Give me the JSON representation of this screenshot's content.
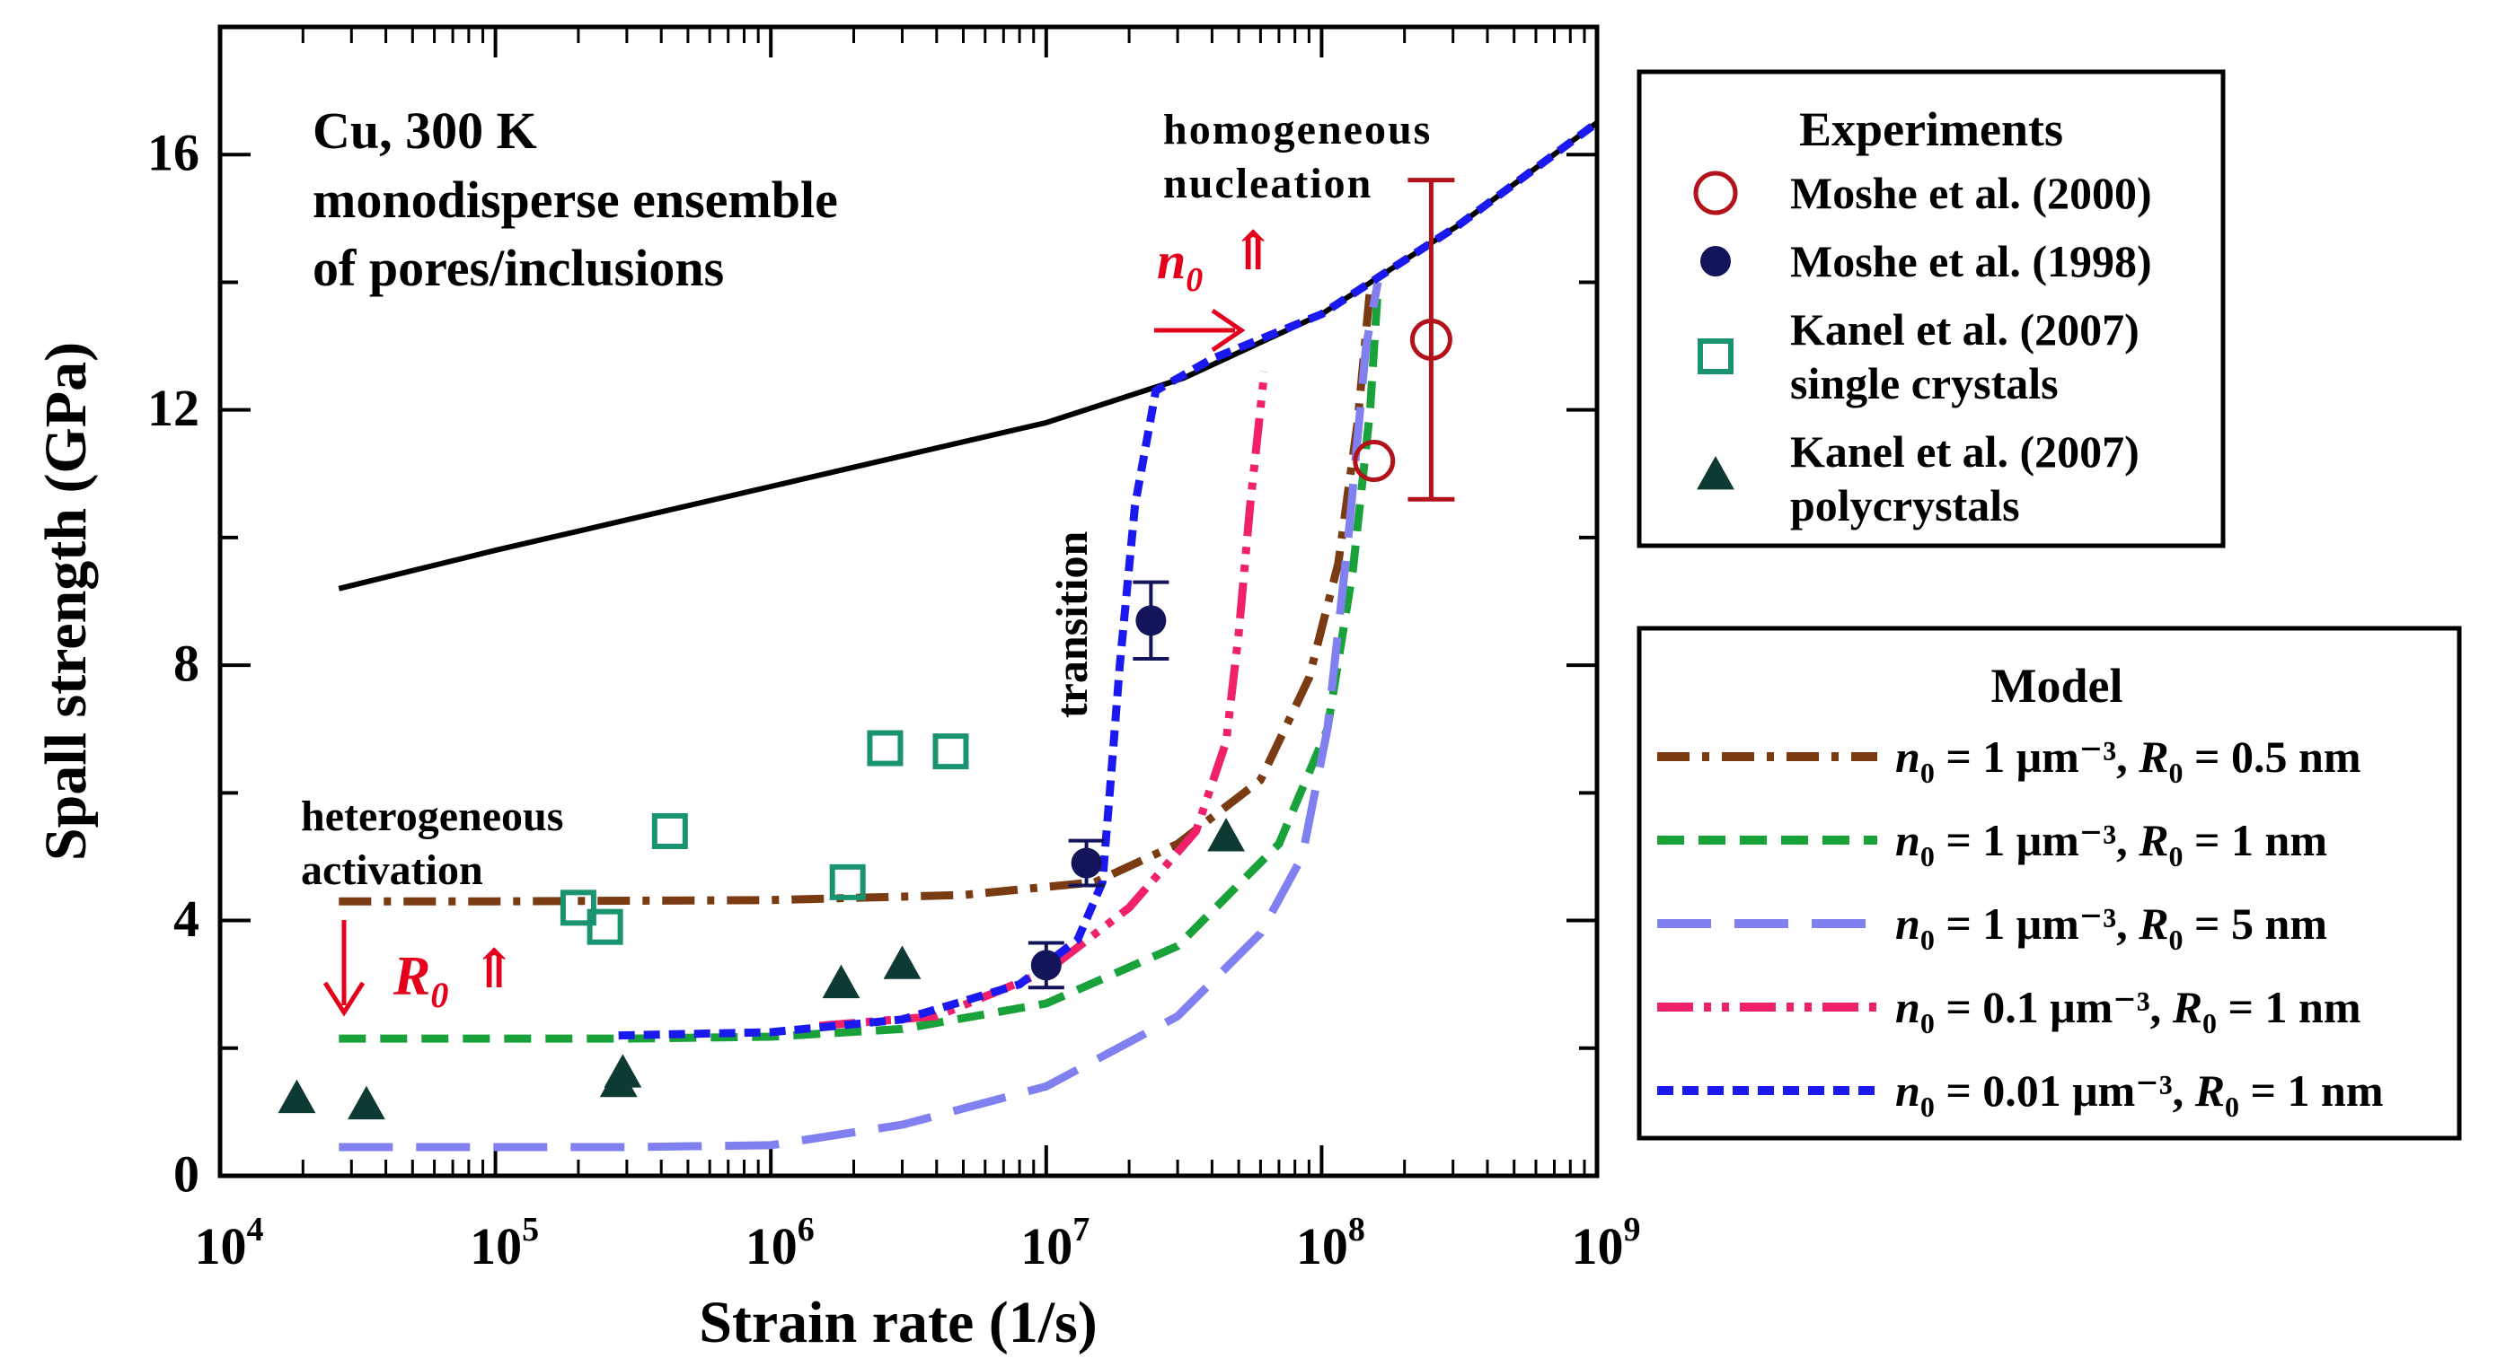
{
  "chart_data": {
    "type": "scatter",
    "xscale": "log",
    "xlim": [
      10000,
      1000000000
    ],
    "ylim": [
      0,
      18
    ],
    "xlabel": "Strain rate (1/s)",
    "ylabel": "Spall strength (GPa)",
    "x_ticks": [
      {
        "value": 10000,
        "base": "10",
        "exp": "4"
      },
      {
        "value": 100000,
        "base": "10",
        "exp": "5"
      },
      {
        "value": 1000000,
        "base": "10",
        "exp": "6"
      },
      {
        "value": 10000000,
        "base": "10",
        "exp": "7"
      },
      {
        "value": 100000000,
        "base": "10",
        "exp": "8"
      },
      {
        "value": 1000000000,
        "base": "10",
        "exp": "9"
      }
    ],
    "y_ticks": [
      {
        "value": 0,
        "label": "0"
      },
      {
        "value": 4,
        "label": "4"
      },
      {
        "value": 8,
        "label": "8"
      },
      {
        "value": 12,
        "label": "12"
      },
      {
        "value": 16,
        "label": "16"
      }
    ],
    "annotations": {
      "material_line1": "Cu, 300 K",
      "material_line2": "monodisperse ensemble",
      "material_line3": "of pores/inclusions",
      "homogeneous_line1": "homogeneous",
      "homogeneous_line2": "nucleation",
      "transition": "transition",
      "heterogeneous_line1": "heterogeneous",
      "heterogeneous_line2": "activation",
      "n0_arrow": "n",
      "n0_sub": "0",
      "R0_arrow": "R",
      "R0_sub": "0",
      "up_arrow": "⇑"
    },
    "legend_experiments": {
      "title": "Experiments",
      "items": [
        {
          "label": "Moshe et al. (2000)",
          "label2": "",
          "marker": "open-circle",
          "color": "#b3121a"
        },
        {
          "label": "Moshe et al. (1998)",
          "label2": "",
          "marker": "filled-circle",
          "color": "#14145a"
        },
        {
          "label": "Kanel et al. (2007)",
          "label2": "single crystals",
          "marker": "open-square",
          "color": "#1a9470"
        },
        {
          "label": "Kanel et al. (2007)",
          "label2": "polycrystals",
          "marker": "filled-triangle",
          "color": "#0e3a34"
        }
      ]
    },
    "legend_model": {
      "title": "Model",
      "text_n0": "n",
      "text_R0": "R",
      "text_sub": "0",
      "text_equals": " = ",
      "text_unit": " μm⁻³, ",
      "items": [
        {
          "n0": "1",
          "R0": "0.5 nm",
          "color": "#7a3b12",
          "dash": "dashdot"
        },
        {
          "n0": "1",
          "R0": "1 nm",
          "color": "#1aa23a",
          "dash": "dash"
        },
        {
          "n0": "1",
          "R0": "5 nm",
          "color": "#8080f0",
          "dash": "longdash"
        },
        {
          "n0": "0.1",
          "R0": "1 nm",
          "color": "#f0206a",
          "dash": "dashdotdot"
        },
        {
          "n0": "0.01",
          "R0": "1 nm",
          "color": "#1a1af0",
          "dash": "shortdash"
        }
      ]
    },
    "series_points": {
      "moshe2000": [
        {
          "x": 155000000,
          "y": 11.2
        },
        {
          "x": 250000000,
          "y": 13.1,
          "err_low": 10.6,
          "err_high": 15.6
        }
      ],
      "moshe1998": [
        {
          "x": 10000000,
          "y": 3.3,
          "err": 0.35
        },
        {
          "x": 14000000,
          "y": 4.9,
          "err": 0.35
        },
        {
          "x": 24000000,
          "y": 8.7,
          "err": 0.6
        }
      ],
      "kanel_single": [
        {
          "x": 200000,
          "y": 4.2
        },
        {
          "x": 250000,
          "y": 3.9
        },
        {
          "x": 430000,
          "y": 5.4
        },
        {
          "x": 1900000,
          "y": 4.6
        },
        {
          "x": 2600000,
          "y": 6.7
        },
        {
          "x": 4500000,
          "y": 6.65
        }
      ],
      "kanel_poly": [
        {
          "x": 19000,
          "y": 1.2
        },
        {
          "x": 34000,
          "y": 1.1
        },
        {
          "x": 280000,
          "y": 1.45
        },
        {
          "x": 290000,
          "y": 1.6
        },
        {
          "x": 1800000,
          "y": 3.0
        },
        {
          "x": 3000000,
          "y": 3.3
        },
        {
          "x": 45000000,
          "y": 5.3
        }
      ]
    },
    "series_curves": [
      {
        "name": "homogeneous",
        "color": "#000000",
        "dash": "solid",
        "points": [
          [
            27000,
            9.2
          ],
          [
            100000,
            9.8
          ],
          [
            316000,
            10.3
          ],
          [
            1000000,
            10.8
          ],
          [
            3160000,
            11.3
          ],
          [
            10000000,
            11.8
          ],
          [
            31600000,
            12.5
          ],
          [
            100000000,
            13.5
          ],
          [
            316000000,
            14.9
          ],
          [
            1000000000,
            16.5
          ]
        ]
      },
      {
        "name": "n0 = 1, R0 = 0.5 nm",
        "color": "#7a3b12",
        "dash": "dashdot",
        "points": [
          [
            27000,
            4.3
          ],
          [
            100000,
            4.3
          ],
          [
            1000000,
            4.32
          ],
          [
            5000000,
            4.4
          ],
          [
            15000000,
            4.6
          ],
          [
            30000000,
            5.2
          ],
          [
            60000000,
            6.2
          ],
          [
            90000000,
            7.8
          ],
          [
            115000000,
            9.6
          ],
          [
            135000000,
            11.8
          ],
          [
            150000000,
            13.9
          ]
        ]
      },
      {
        "name": "n0 = 1, R0 = 1 nm",
        "color": "#1aa23a",
        "dash": "dash",
        "points": [
          [
            27000,
            2.15
          ],
          [
            300000,
            2.15
          ],
          [
            1000000,
            2.18
          ],
          [
            3000000,
            2.3
          ],
          [
            10000000,
            2.7
          ],
          [
            30000000,
            3.6
          ],
          [
            70000000,
            5.2
          ],
          [
            105000000,
            7.0
          ],
          [
            130000000,
            9.5
          ],
          [
            150000000,
            12.0
          ],
          [
            160000000,
            13.9
          ]
        ]
      },
      {
        "name": "n0 = 1, R0 = 5 nm",
        "color": "#8080f0",
        "dash": "longdash",
        "points": [
          [
            27000,
            0.45
          ],
          [
            300000,
            0.45
          ],
          [
            1000000,
            0.48
          ],
          [
            3000000,
            0.8
          ],
          [
            10000000,
            1.4
          ],
          [
            30000000,
            2.5
          ],
          [
            60000000,
            3.8
          ],
          [
            85000000,
            5.0
          ],
          [
            105000000,
            7.0
          ],
          [
            125000000,
            10.0
          ],
          [
            145000000,
            13.0
          ],
          [
            160000000,
            14.0
          ]
        ]
      },
      {
        "name": "n0 = 0.1, R0 = 1 nm",
        "color": "#f0206a",
        "dash": "dashdotdot",
        "points": [
          [
            1500000,
            2.35
          ],
          [
            4000000,
            2.5
          ],
          [
            10000000,
            3.2
          ],
          [
            20000000,
            4.2
          ],
          [
            35000000,
            5.4
          ],
          [
            45000000,
            6.8
          ],
          [
            50000000,
            8.5
          ],
          [
            55000000,
            10.5
          ],
          [
            62000000,
            12.6
          ]
        ]
      },
      {
        "name": "n0 = 0.01, R0 = 1 nm",
        "color": "#1a1af0",
        "dash": "shortdash",
        "points": [
          [
            280000,
            2.2
          ],
          [
            1000000,
            2.25
          ],
          [
            3000000,
            2.45
          ],
          [
            8000000,
            3.0
          ],
          [
            13000000,
            3.7
          ],
          [
            16000000,
            4.6
          ],
          [
            17000000,
            6.0
          ],
          [
            18500000,
            8.0
          ],
          [
            21000000,
            10.5
          ],
          [
            25000000,
            12.3
          ],
          [
            40000000,
            12.8
          ],
          [
            100000000,
            13.5
          ],
          [
            316000000,
            14.9
          ],
          [
            1000000000,
            16.5
          ]
        ]
      }
    ]
  }
}
